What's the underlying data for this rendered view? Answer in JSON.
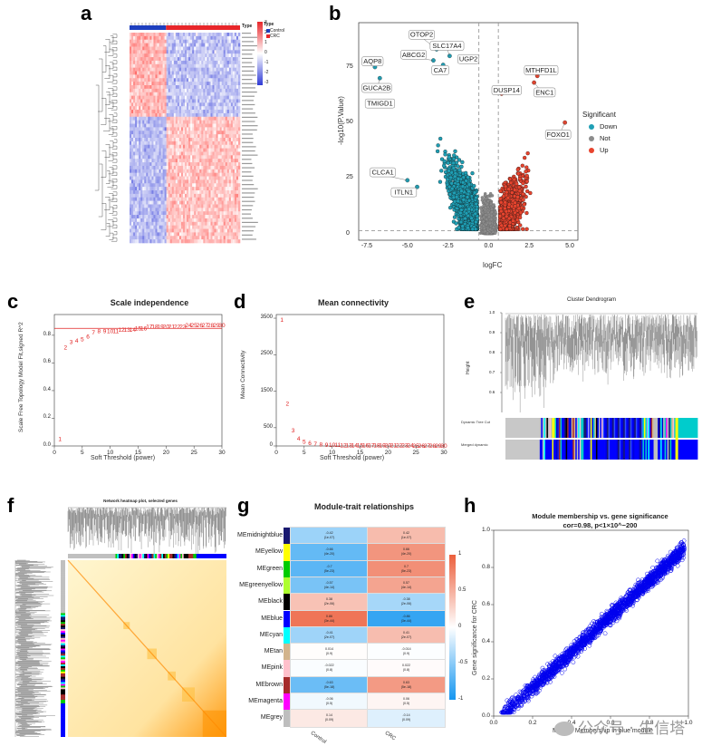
{
  "labels": {
    "a": "a",
    "b": "b",
    "c": "c",
    "d": "d",
    "e": "e",
    "f": "f",
    "g": "g",
    "h": "h"
  },
  "heatmap_a": {
    "legend_type": "Type",
    "legend_groups": [
      "Control",
      "CRC"
    ],
    "scale_ticks": [
      "3",
      "2",
      "1",
      "0",
      "-1",
      "-2",
      "-3"
    ],
    "legend_title_type": "Type",
    "colors": {
      "control": "#1e3fbf",
      "crc": "#e8262a",
      "high": "#e8262a",
      "low": "#2f3bd6",
      "mid": "#ffffff"
    }
  },
  "volcano_b": {
    "xlabel": "logFC",
    "ylabel": "-log10(P.Value)",
    "legend_title": "Significant",
    "legend": [
      {
        "name": "Down",
        "color": "#1f9fb5"
      },
      {
        "name": "Not",
        "color": "#8c8c8c"
      },
      {
        "name": "Up",
        "color": "#e8442e"
      }
    ],
    "xticks": [
      "-7.5",
      "-5.0",
      "-2.5",
      "0.0",
      "2.5",
      "5.0"
    ],
    "yticks": [
      "0",
      "25",
      "50",
      "75"
    ],
    "genes": [
      "OTOP2",
      "SLC17A4",
      "ABCG2",
      "AQP8",
      "CA7",
      "UGP2",
      "GUCA2B",
      "TMIGD1",
      "DUSP14",
      "MTHFD1L",
      "ENC1",
      "FOXO1",
      "CLCA1",
      "ITLN1"
    ]
  },
  "panel_c": {
    "title": "Scale independence",
    "xlabel": "Soft Threshold (power)",
    "ylabel": "Scale Free Topology Model Fit,signed R^2",
    "xticks": [
      "0",
      "5",
      "10",
      "15",
      "20",
      "25",
      "30"
    ],
    "yticks": [
      "0.0",
      "0.2",
      "0.4",
      "0.6",
      "0.8"
    ]
  },
  "panel_d": {
    "title": "Mean connectivity",
    "xlabel": "Soft Threshold (power)",
    "ylabel": "Mean Connectivity",
    "xticks": [
      "0",
      "5",
      "10",
      "15",
      "20",
      "25",
      "30"
    ],
    "yticks": [
      "0",
      "500",
      "1500",
      "2500",
      "3500"
    ]
  },
  "panel_e": {
    "title": "Cluster Dendrogram",
    "ylabel": "Height",
    "yticks": [
      "1.0",
      "0.9",
      "0.8",
      "0.7",
      "0.6"
    ],
    "row1": "Dynamic Tree Cut",
    "row2": "Merged dynamic"
  },
  "panel_f": {
    "title": "Network heatmap plot, selected genes"
  },
  "panel_g": {
    "title": "Module-trait relationships",
    "columns": [
      "Control",
      "CRC"
    ],
    "scale_ticks": [
      "1",
      "0.5",
      "0",
      "-0.5",
      "-1"
    ],
    "rows": [
      {
        "name": "MEmidnightblue",
        "color": "#191970",
        "c1": "-0.42",
        "p1": "(1e-07)",
        "c2": "0.42",
        "p2": "(1e-07)",
        "v1": -0.42,
        "v2": 0.42
      },
      {
        "name": "MEyellow",
        "color": "#ffff00",
        "c1": "-0.66",
        "p1": "(4e-20)",
        "c2": "0.66",
        "p2": "(4e-20)",
        "v1": -0.66,
        "v2": 0.66
      },
      {
        "name": "MEgreen",
        "color": "#00cc00",
        "c1": "-0.7",
        "p1": "(5e-23)",
        "c2": "0.7",
        "p2": "(5e-23)",
        "v1": -0.7,
        "v2": 0.7
      },
      {
        "name": "MEgreenyellow",
        "color": "#adff2f",
        "c1": "-0.57",
        "p1": "(4e-14)",
        "c2": "0.57",
        "p2": "(4e-14)",
        "v1": -0.57,
        "v2": 0.57
      },
      {
        "name": "MEblack",
        "color": "#000000",
        "c1": "0.38",
        "p1": "(2e-06)",
        "c2": "-0.38",
        "p2": "(2e-06)",
        "v1": 0.38,
        "v2": -0.38
      },
      {
        "name": "MEblue",
        "color": "#0000ff",
        "c1": "0.86",
        "p1": "(3e-44)",
        "c2": "-0.86",
        "p2": "(3e-44)",
        "v1": 0.86,
        "v2": -0.86
      },
      {
        "name": "MEcyan",
        "color": "#00ffff",
        "c1": "-0.41",
        "p1": "(2e-07)",
        "c2": "0.41",
        "p2": "(2e-07)",
        "v1": -0.41,
        "v2": 0.41
      },
      {
        "name": "MEtan",
        "color": "#d2b48c",
        "c1": "0.014",
        "p1": "(0.9)",
        "c2": "-0.014",
        "p2": "(0.9)",
        "v1": 0.014,
        "v2": -0.014
      },
      {
        "name": "MEpink",
        "color": "#ffc0cb",
        "c1": "-0.022",
        "p1": "(0.8)",
        "c2": "0.022",
        "p2": "(0.8)",
        "v1": -0.022,
        "v2": 0.022
      },
      {
        "name": "MEbrown",
        "color": "#a52a2a",
        "c1": "-0.63",
        "p1": "(5e-18)",
        "c2": "0.63",
        "p2": "(5e-18)",
        "v1": -0.63,
        "v2": 0.63
      },
      {
        "name": "MEmagenta",
        "color": "#ff00ff",
        "c1": "-0.06",
        "p1": "(0.5)",
        "c2": "0.06",
        "p2": "(0.5)",
        "v1": -0.06,
        "v2": 0.06
      },
      {
        "name": "MEgrey",
        "color": "#bebebe",
        "c1": "0.14",
        "p1": "(0.09)",
        "c2": "-0.14",
        "p2": "(0.09)",
        "v1": 0.14,
        "v2": -0.14
      }
    ]
  },
  "panel_h": {
    "title": "Module membership vs. gene significance",
    "subtitle": "cor=0.98, p<1×10^−200",
    "xlabel": "Module Membership in blue module",
    "ylabel": "Gene significance for  CRC",
    "xticks": [
      "0.0",
      "0.2",
      "0.4",
      "0.6",
      "0.8",
      "1.0"
    ],
    "yticks": [
      "0.0",
      "0.2",
      "0.4",
      "0.6",
      "0.8",
      "1.0"
    ],
    "point_color": "#0000ee"
  },
  "watermark": {
    "text": "公众号 · 生信塔"
  },
  "chart_data": [
    {
      "type": "heatmap",
      "panel": "a",
      "legend": [
        "Control",
        "CRC"
      ],
      "scale_range": [
        -3,
        3
      ]
    },
    {
      "type": "scatter",
      "panel": "b",
      "xlabel": "logFC",
      "ylabel": "-log10(P.Value)",
      "xlim": [
        -8,
        5.5
      ],
      "ylim": [
        0,
        95
      ],
      "thresholds": {
        "logFC": [
          -0.6,
          0.6
        ],
        "y": 1.3
      },
      "labeled_points": [
        {
          "gene": "OTOP2",
          "x": -3.2,
          "y": 83
        },
        {
          "gene": "SLC17A4",
          "x": -2.4,
          "y": 80
        },
        {
          "gene": "ABCG2",
          "x": -3.4,
          "y": 78
        },
        {
          "gene": "AQP8",
          "x": -7.0,
          "y": 75
        },
        {
          "gene": "CA7",
          "x": -2.8,
          "y": 76
        },
        {
          "gene": "UGP2",
          "x": -1.0,
          "y": 78
        },
        {
          "gene": "GUCA2B",
          "x": -6.7,
          "y": 70
        },
        {
          "gene": "TMIGD1",
          "x": -6.6,
          "y": 58
        },
        {
          "gene": "DUSP14",
          "x": 0.8,
          "y": 63
        },
        {
          "gene": "MTHFD1L",
          "x": 3.0,
          "y": 71
        },
        {
          "gene": "ENC1",
          "x": 2.8,
          "y": 68
        },
        {
          "gene": "FOXO1",
          "x": 4.7,
          "y": 50
        },
        {
          "gene": "CLCA1",
          "x": -5.0,
          "y": 24
        },
        {
          "gene": "ITLN1",
          "x": -4.4,
          "y": 21
        }
      ]
    },
    {
      "type": "scatter",
      "panel": "c",
      "xlabel": "Soft Threshold (power)",
      "ylabel": "Scale Free Topology Model Fit,signed R^2",
      "xlim": [
        0,
        30
      ],
      "ylim": [
        0,
        0.95
      ],
      "threshold": 0.85,
      "x": [
        1,
        2,
        3,
        4,
        5,
        6,
        7,
        8,
        9,
        10,
        11,
        12,
        13,
        14,
        15,
        16,
        17,
        18,
        19,
        20,
        21,
        22,
        23,
        24,
        25,
        26,
        27,
        28,
        29,
        30
      ],
      "y": [
        0.05,
        0.71,
        0.75,
        0.76,
        0.77,
        0.79,
        0.82,
        0.83,
        0.83,
        0.83,
        0.83,
        0.84,
        0.84,
        0.84,
        0.85,
        0.85,
        0.86,
        0.86,
        0.86,
        0.86,
        0.86,
        0.86,
        0.86,
        0.87,
        0.87,
        0.87,
        0.87,
        0.87,
        0.87,
        0.87
      ]
    },
    {
      "type": "scatter",
      "panel": "d",
      "xlabel": "Soft Threshold (power)",
      "ylabel": "Mean Connectivity",
      "xlim": [
        0,
        30
      ],
      "ylim": [
        0,
        3600
      ],
      "x": [
        1,
        2,
        3,
        4,
        5,
        6,
        7,
        8,
        9,
        10,
        11,
        12,
        13,
        14,
        15,
        16,
        17,
        18,
        19,
        20,
        21,
        22,
        23,
        24,
        25,
        26,
        27,
        28,
        29,
        30
      ],
      "y": [
        3450,
        1150,
        420,
        200,
        110,
        70,
        50,
        38,
        30,
        25,
        20,
        18,
        16,
        14,
        13,
        12,
        11,
        10,
        9,
        9,
        8,
        8,
        7,
        7,
        6,
        6,
        6,
        5,
        5,
        5
      ]
    },
    {
      "type": "table",
      "panel": "g",
      "title": "Module-trait relationships"
    },
    {
      "type": "scatter",
      "panel": "h",
      "xlabel": "Module Membership in blue module",
      "ylabel": "Gene significance for  CRC",
      "xlim": [
        0,
        1
      ],
      "ylim": [
        0,
        1
      ],
      "cor": 0.98
    }
  ]
}
